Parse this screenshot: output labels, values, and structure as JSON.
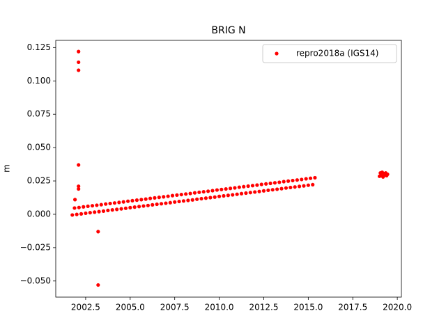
{
  "chart_data": {
    "type": "scatter",
    "title": "BRIG N",
    "y_label": "m",
    "xlim": [
      2000.82,
      2020.23
    ],
    "ylim": [
      -0.0621,
      0.1304
    ],
    "xticks": [
      {
        "value": 2002.5,
        "label": "2002.5"
      },
      {
        "value": 2005,
        "label": "2005.0"
      },
      {
        "value": 2007.5,
        "label": "2007.5"
      },
      {
        "value": 2010,
        "label": "2010.0"
      },
      {
        "value": 2012.5,
        "label": "2012.5"
      },
      {
        "value": 2015,
        "label": "2015.0"
      },
      {
        "value": 2017.5,
        "label": "2017.5"
      },
      {
        "value": 2020,
        "label": "2020.0"
      }
    ],
    "yticks": [
      {
        "value": -0.05,
        "label": "−0.050"
      },
      {
        "value": -0.025,
        "label": "−0.025"
      },
      {
        "value": 0,
        "label": "0.000"
      },
      {
        "value": 0.025,
        "label": "0.025"
      },
      {
        "value": 0.05,
        "label": "0.050"
      },
      {
        "value": 0.075,
        "label": "0.075"
      },
      {
        "value": 0.1,
        "label": "0.100"
      },
      {
        "value": 0.125,
        "label": "0.125"
      }
    ],
    "grid": false,
    "legend_position": "upper right",
    "series": [
      {
        "name": "repro2018a (IGS14)",
        "color": "#ff0000",
        "x": [
          2001.75,
          2001.875,
          2002.0,
          2002.125,
          2002.25,
          2002.375,
          2002.5,
          2002.625,
          2002.75,
          2002.875,
          2003.0,
          2003.125,
          2003.25,
          2003.375,
          2003.5,
          2003.625,
          2003.75,
          2003.875,
          2004.0,
          2004.125,
          2004.25,
          2004.375,
          2004.5,
          2004.625,
          2004.75,
          2004.875,
          2005.0,
          2005.125,
          2005.25,
          2005.375,
          2005.5,
          2005.625,
          2005.75,
          2005.875,
          2006.0,
          2006.125,
          2006.25,
          2006.375,
          2006.5,
          2006.625,
          2006.75,
          2006.875,
          2007.0,
          2007.125,
          2007.25,
          2007.375,
          2007.5,
          2007.625,
          2007.75,
          2007.875,
          2008.0,
          2008.125,
          2008.25,
          2008.375,
          2008.5,
          2008.625,
          2008.75,
          2008.875,
          2009.0,
          2009.125,
          2009.25,
          2009.375,
          2009.5,
          2009.625,
          2009.75,
          2009.875,
          2010.0,
          2010.125,
          2010.25,
          2010.375,
          2010.5,
          2010.625,
          2010.75,
          2010.875,
          2011.0,
          2011.125,
          2011.25,
          2011.375,
          2011.5,
          2011.625,
          2011.75,
          2011.875,
          2012.0,
          2012.125,
          2012.25,
          2012.375,
          2012.5,
          2012.625,
          2012.75,
          2012.875,
          2013.0,
          2013.125,
          2013.25,
          2013.375,
          2013.5,
          2013.625,
          2013.75,
          2013.875,
          2014.0,
          2014.125,
          2014.25,
          2014.375,
          2014.5,
          2014.625,
          2014.75,
          2014.875,
          2015.0,
          2015.125,
          2015.25,
          2015.375,
          2019.0,
          2019.05,
          2019.1,
          2019.15,
          2019.2,
          2019.25,
          2019.3,
          2019.35,
          2019.4,
          2019.45,
          2002.1,
          2002.1,
          2002.1,
          2002.1,
          2002.1,
          2002.1,
          2001.9,
          2003.2,
          2003.2
        ],
        "values": [
          -0.0005,
          0.0047,
          -0.0001,
          0.0051,
          0.0003,
          0.0056,
          0.0008,
          0.006,
          0.0012,
          0.0064,
          0.0016,
          0.0068,
          0.002,
          0.0072,
          0.0024,
          0.0077,
          0.0029,
          0.0081,
          0.0033,
          0.0085,
          0.0037,
          0.0089,
          0.0041,
          0.0093,
          0.0045,
          0.0098,
          0.005,
          0.0102,
          0.0054,
          0.0106,
          0.0058,
          0.011,
          0.0062,
          0.0114,
          0.0066,
          0.0119,
          0.0071,
          0.0123,
          0.0075,
          0.0127,
          0.0079,
          0.0131,
          0.0083,
          0.0135,
          0.0087,
          0.014,
          0.0092,
          0.0144,
          0.0096,
          0.0148,
          0.01,
          0.0152,
          0.0104,
          0.0156,
          0.0108,
          0.0161,
          0.0113,
          0.0165,
          0.0117,
          0.0169,
          0.0121,
          0.0173,
          0.0125,
          0.0177,
          0.0129,
          0.0182,
          0.0134,
          0.0186,
          0.0138,
          0.019,
          0.0142,
          0.0194,
          0.0146,
          0.0198,
          0.015,
          0.0203,
          0.0155,
          0.0207,
          0.0159,
          0.0211,
          0.0163,
          0.0215,
          0.0167,
          0.0219,
          0.0171,
          0.0224,
          0.0176,
          0.0228,
          0.018,
          0.0232,
          0.0184,
          0.0236,
          0.0188,
          0.024,
          0.0192,
          0.0245,
          0.0197,
          0.0249,
          0.0201,
          0.0253,
          0.0205,
          0.0257,
          0.0209,
          0.0261,
          0.0213,
          0.0266,
          0.0218,
          0.027,
          0.0222,
          0.0274,
          0.0285,
          0.031,
          0.029,
          0.0315,
          0.028,
          0.0305,
          0.0295,
          0.031,
          0.029,
          0.03,
          0.122,
          0.114,
          0.108,
          0.037,
          0.021,
          0.019,
          0.011,
          -0.013,
          -0.053
        ]
      }
    ]
  }
}
